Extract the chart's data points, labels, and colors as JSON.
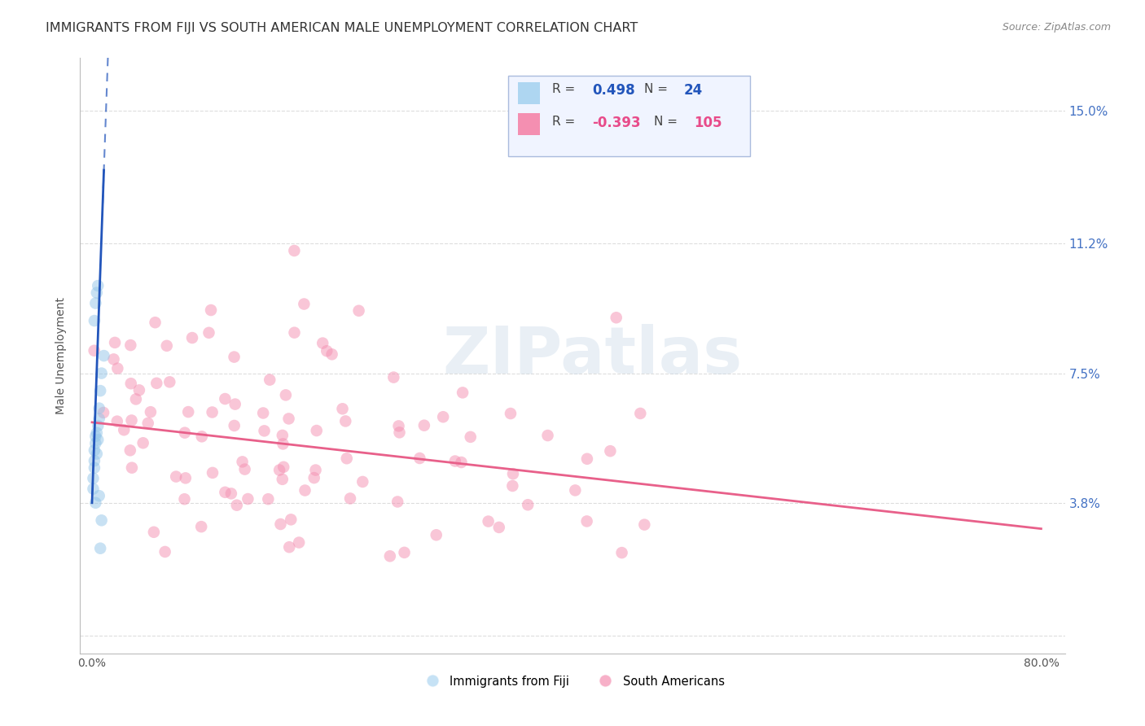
{
  "title": "IMMIGRANTS FROM FIJI VS SOUTH AMERICAN MALE UNEMPLOYMENT CORRELATION CHART",
  "source": "Source: ZipAtlas.com",
  "ylabel": "Male Unemployment",
  "yticks": [
    0.0,
    0.038,
    0.075,
    0.112,
    0.15
  ],
  "xlim": [
    -0.01,
    0.82
  ],
  "ylim": [
    -0.005,
    0.165
  ],
  "fiji_r": 0.498,
  "fiji_n": 24,
  "sa_r": -0.393,
  "sa_n": 105,
  "watermark": "ZIPatlas",
  "fiji_dot_color": "#92C5E8",
  "sa_dot_color": "#F48FB1",
  "fiji_line_color": "#2255BB",
  "sa_line_color": "#E8608A",
  "dot_alpha": 0.5,
  "dot_size": 110,
  "background_color": "#FFFFFF",
  "grid_color": "#DDDDDD",
  "title_color": "#333333",
  "right_axis_color": "#4472C4",
  "title_fontsize": 11.5,
  "axis_fontsize": 10,
  "legend_box_color": "#F0F4FF",
  "legend_border_color": "#AABBDD"
}
